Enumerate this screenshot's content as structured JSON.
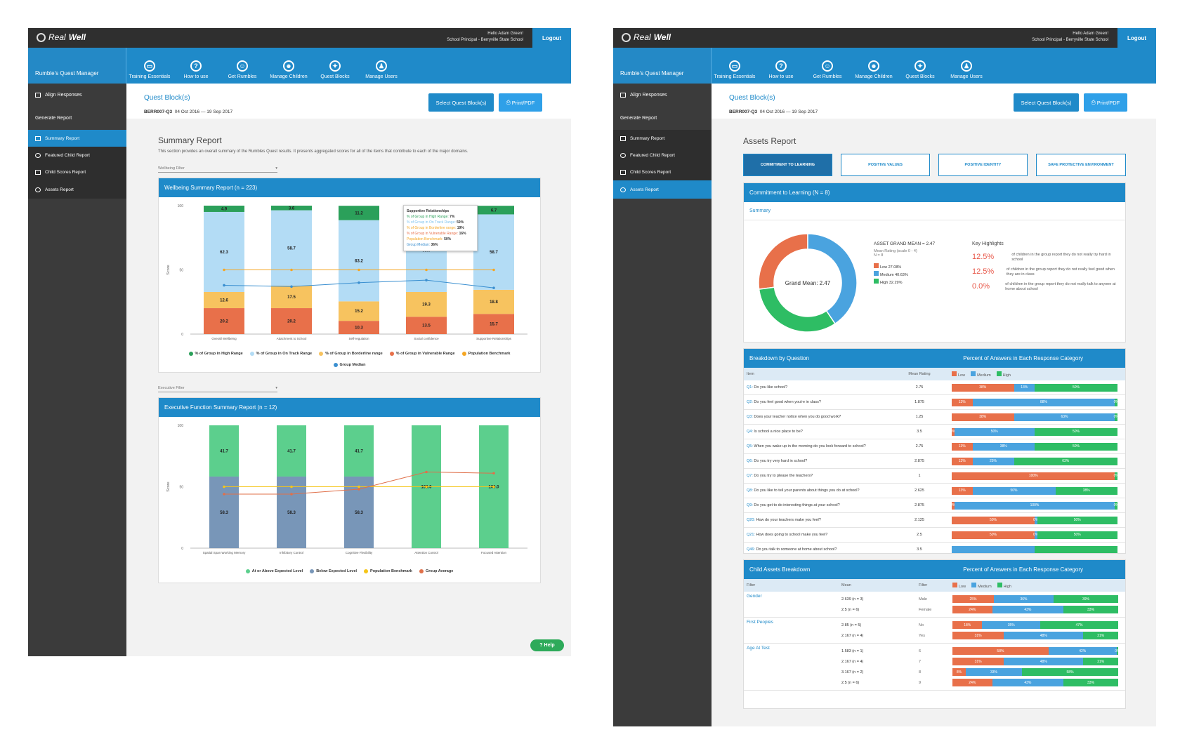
{
  "app": {
    "logo_a": "Real",
    "logo_b": "Well",
    "hello": "Hello Adam Green!",
    "role": "School Principal - Berryville State School",
    "logout": "Logout"
  },
  "nav": {
    "manager": "Rumble's Quest Manager",
    "items": [
      "Training Essentials",
      "How to use",
      "Get Rumbles",
      "Manage Children",
      "Quest Blocks",
      "Manage Users"
    ]
  },
  "sidebar": {
    "align": "Align Responses",
    "generate": "Generate Report",
    "reports": [
      "Summary Report",
      "Featured Child Report",
      "Child Scores Report",
      "Assets Report"
    ]
  },
  "quest": {
    "title": "Quest Block(s)",
    "code": "BERR007-Q3",
    "dates": "04 Oct 2016 — 19 Sep 2017",
    "select": "Select Quest Block(s)",
    "print": "Print/PDF"
  },
  "summary": {
    "title": "Summary Report",
    "desc": "This section provides an overall summary of the Rumbles Quest results. It presents aggregated scores for all of the items that contribute to each of the major domains.",
    "filter1": "Wellbeing Filter",
    "filter2": "Executive Filter",
    "help": "Help"
  },
  "chart_data": [
    {
      "type": "bar",
      "title": "Wellbeing Summary Report (n = 223)",
      "ylabel": "Score",
      "ylim": [
        0,
        100
      ],
      "yticks": [
        "100",
        "50",
        "0"
      ],
      "categories": [
        "Overall Wellbeing",
        "Attachment to School",
        "Self-regulation",
        "Social confidence",
        "Supportive Relationships"
      ],
      "series": [
        {
          "name": "% of Group in Vulnerable Range",
          "color": "#e8704a",
          "values": [
            20.2,
            20.2,
            10.3,
            13.5,
            15.7
          ]
        },
        {
          "name": "% of Group in Borderline range",
          "color": "#f7c35f",
          "values": [
            12.6,
            17.5,
            15.2,
            19.3,
            18.8
          ]
        },
        {
          "name": "% of Group in On Track Range",
          "color": "#b3dcf5",
          "values": [
            62.3,
            58.7,
            63.2,
            65.0,
            58.7
          ]
        },
        {
          "name": "% of Group in High Range",
          "color": "#2ba05a",
          "values": [
            4.9,
            3.6,
            11.2,
            2.2,
            6.7
          ]
        }
      ],
      "lines": [
        {
          "name": "Population Benchmark",
          "color": "#f5a623",
          "values": [
            50,
            50,
            50,
            50,
            50
          ]
        },
        {
          "name": "Group Median",
          "color": "#3a8fd0",
          "values": [
            38,
            37,
            40,
            42,
            36
          ]
        }
      ],
      "labels": {
        "high": [
          "4.9",
          "3.6",
          "11.2",
          "",
          "6.7"
        ]
      },
      "tooltip": {
        "title": "Supportive Relationships",
        "rows": [
          {
            "label": "% of Group in High Range:",
            "value": "7%",
            "color": "#2ba05a"
          },
          {
            "label": "% of Group in On Track Range:",
            "value": "59%",
            "color": "#7fc3ee"
          },
          {
            "label": "% of Group in Borderline range:",
            "value": "19%",
            "color": "#f5a623"
          },
          {
            "label": "% of Group in Vulnerable Range:",
            "value": "16%",
            "color": "#e8704a"
          },
          {
            "label": "Population Benchmark:",
            "value": "50%",
            "color": "#f5a623"
          },
          {
            "label": "Group Median:",
            "value": "36%",
            "color": "#3a8fd0"
          }
        ]
      },
      "legend": [
        "% of Group in High Range",
        "% of Group in On Track Range",
        "% of Group in Borderline range",
        "% of Group in Vulnerable Range",
        "Population Benchmark",
        "Group Median"
      ]
    },
    {
      "type": "bar",
      "title": "Executive Function Summary Report (n = 12)",
      "ylabel": "Score",
      "ylim": [
        0,
        100
      ],
      "yticks": [
        "100",
        "50",
        "0"
      ],
      "categories": [
        "Spatial Span Working Memory",
        "Inhibitory Control",
        "Cognitive Flexibility",
        "Attention Control",
        "Focused Attention"
      ],
      "series": [
        {
          "name": "Below Expected Level",
          "color": "#7896b8",
          "values": [
            58.3,
            58.3,
            58.3,
            0.0,
            0.0
          ]
        },
        {
          "name": "At or Above Expected Level",
          "color": "#5ccf8d",
          "values": [
            41.7,
            41.7,
            41.7,
            100.0,
            100.0
          ]
        }
      ],
      "lines": [
        {
          "name": "Population Benchmark",
          "color": "#f5c518",
          "values": [
            50,
            50,
            50,
            50,
            50
          ]
        },
        {
          "name": "Group Average",
          "color": "#e0704a",
          "values": [
            44,
            44,
            48,
            62,
            61
          ]
        }
      ],
      "legend": [
        "At or Above Expected Level",
        "Below Expected Level",
        "Population Benchmark",
        "Group Average"
      ]
    }
  ],
  "assets": {
    "title": "Assets Report",
    "tabs": [
      "COMMITMENT TO LEARNING",
      "POSITIVE VALUES",
      "POSITIVE IDENTITY",
      "SAFE PROTECTIVE ENVIRONMENT"
    ],
    "panel_title": "Commitment to Learning (N = 8)",
    "summary_label": "Summary",
    "donut": {
      "center": "Grand Mean: 2.47",
      "slices": [
        {
          "label": "Low",
          "value": 27.08,
          "color": "#e8704a"
        },
        {
          "label": "Medium",
          "value": 40.63,
          "color": "#4aa3df"
        },
        {
          "label": "High",
          "value": 32.29,
          "color": "#2ebd64"
        }
      ]
    },
    "grand_mean": "ASSET GRAND MEAN = 2.47",
    "mean_rating": "Mean Rating (scale 0 - 4)",
    "n": "N = 8",
    "donut_legend": [
      "Low   27.08%",
      "Medium   40.63%",
      "High   32.29%"
    ],
    "highlights_title": "Key Highlights",
    "highlights": [
      {
        "pct": "12.5%",
        "text": "of children in the group report they do not really try hard in school"
      },
      {
        "pct": "12.5%",
        "text": "of children in the group report they do not really feel good when they are in class"
      },
      {
        "pct": "0.0%",
        "text": "of children in the group report they do not really talk to anyone at home about school"
      }
    ],
    "breakdown_title": "Breakdown by Question",
    "percent_title": "Percent of Answers in Each Response Category",
    "cols": {
      "item": "Item",
      "mean": "Mean Rating"
    },
    "legend": [
      "Low",
      "Medium",
      "High"
    ],
    "questions": [
      {
        "id": "Q1",
        "q": "Do you like school?",
        "mean": "2.75",
        "low": "38%",
        "med": "13%",
        "high": "50%",
        "lw": 37.5,
        "mw": 12.5,
        "hw": 50
      },
      {
        "id": "Q2",
        "q": "Do you feel good when you're in class?",
        "mean": "1.875",
        "low": "13%",
        "med": "88%",
        "high": "0%",
        "lw": 12.5,
        "mw": 86,
        "hw": 1.5
      },
      {
        "id": "Q3",
        "q": "Does your teacher notice when you do good work?",
        "mean": "1.25",
        "low": "38%",
        "med": "63%",
        "high": "0%",
        "lw": 37.5,
        "mw": 61,
        "hw": 1.5
      },
      {
        "id": "Q4",
        "q": "Is school a nice place to be?",
        "mean": "3.5",
        "low": "0%",
        "med": "50%",
        "high": "50%",
        "lw": 1.5,
        "mw": 48.5,
        "hw": 50
      },
      {
        "id": "Q5",
        "q": "When you wake up in the morning do you look forward to school?",
        "mean": "2.75",
        "low": "13%",
        "med": "38%",
        "high": "50%",
        "lw": 12.5,
        "mw": 37.5,
        "hw": 50
      },
      {
        "id": "Q6",
        "q": "Do you try very hard in school?",
        "mean": "2.875",
        "low": "13%",
        "med": "25%",
        "high": "63%",
        "lw": 12.5,
        "mw": 25,
        "hw": 62.5
      },
      {
        "id": "Q7",
        "q": "Do you try to please the teachers?",
        "mean": "1",
        "low": "100%",
        "med": "",
        "high": "0%",
        "lw": 98.5,
        "mw": 0,
        "hw": 1.5
      },
      {
        "id": "Q8",
        "q": "Do you like to tell your parents about things you do at school?",
        "mean": "2.625",
        "low": "13%",
        "med": "50%",
        "high": "38%",
        "lw": 12.5,
        "mw": 50,
        "hw": 37.5
      },
      {
        "id": "Q9",
        "q": "Do you get to do interesting things at your school?",
        "mean": "2.875",
        "low": "0%",
        "med": "100%",
        "high": "0%",
        "lw": 1.5,
        "mw": 97,
        "hw": 1.5
      },
      {
        "id": "Q20",
        "q": "How do your teachers make you feel?",
        "mean": "2.125",
        "low": "50%",
        "med": "0%",
        "high": "50%",
        "lw": 50,
        "mw": 1.5,
        "hw": 48.5
      },
      {
        "id": "Q21",
        "q": "How does going to school make you feel?",
        "mean": "2.5",
        "low": "50%",
        "med": "0%",
        "high": "50%",
        "lw": 50,
        "mw": 1.5,
        "hw": 48.5
      },
      {
        "id": "Q46",
        "q": "Do you talk to someone at home about school?",
        "mean": "3.5",
        "low": "",
        "med": "",
        "high": "",
        "lw": 0,
        "mw": 50,
        "hw": 50
      }
    ],
    "child_title": "Child Assets Breakdown",
    "child_cols": {
      "filter": "Filter",
      "mean": "Mean",
      "filter2": "Filter"
    },
    "groups": [
      {
        "name": "Gender",
        "rows": [
          {
            "mean": "2.639 (n = 3)",
            "label": "Male",
            "low": "25%",
            "med": "36%",
            "high": "39%",
            "lw": 25,
            "mw": 36,
            "hw": 39
          },
          {
            "mean": "2.5 (n = 6)",
            "label": "Female",
            "low": "24%",
            "med": "43%",
            "high": "33%",
            "lw": 24,
            "mw": 43,
            "hw": 33
          }
        ]
      },
      {
        "name": "First Peoples",
        "rows": [
          {
            "mean": "2.85 (n = 5)",
            "label": "No",
            "low": "18%",
            "med": "35%",
            "high": "47%",
            "lw": 18,
            "mw": 35,
            "hw": 47
          },
          {
            "mean": "2.167 (n = 4)",
            "label": "Yes",
            "low": "31%",
            "med": "48%",
            "high": "21%",
            "lw": 31,
            "mw": 48,
            "hw": 21
          }
        ]
      },
      {
        "name": "Age At Test",
        "rows": [
          {
            "mean": "1.583 (n = 1)",
            "label": "6",
            "low": "58%",
            "med": "42%",
            "high": "0%",
            "lw": 58,
            "mw": 41,
            "hw": 1
          },
          {
            "mean": "2.167 (n = 4)",
            "label": "7",
            "low": "31%",
            "med": "48%",
            "high": "21%",
            "lw": 31,
            "mw": 48,
            "hw": 21
          },
          {
            "mean": "3.167 (n = 2)",
            "label": "8",
            "low": "8%",
            "med": "33%",
            "high": "58%",
            "lw": 8,
            "mw": 34,
            "hw": 58
          },
          {
            "mean": "2.5 (n = 6)",
            "label": "9",
            "low": "24%",
            "med": "43%",
            "high": "33%",
            "lw": 24,
            "mw": 43,
            "hw": 33
          }
        ]
      }
    ]
  }
}
